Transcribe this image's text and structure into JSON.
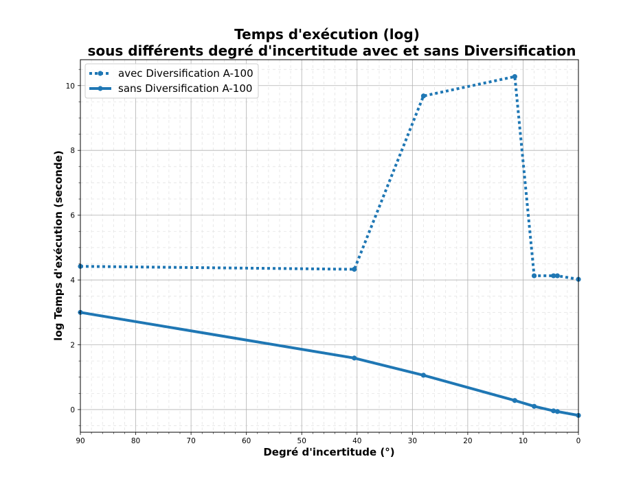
{
  "chart_data": {
    "type": "line",
    "title_line1": "Temps d'exécution (log)",
    "title_line2": "sous différents degré d'incertitude avec et sans Diversification",
    "xlabel": "Degré d'incertitude (°)",
    "ylabel": "log Temps d'exécution (seconde)",
    "xlim": [
      90,
      0
    ],
    "x_inverted": true,
    "ylim": [
      -0.7,
      10.8
    ],
    "grid": true,
    "minor_grid": true,
    "legend_placement": "top-left",
    "x_ticks": [
      90,
      80,
      70,
      60,
      50,
      40,
      30,
      20,
      10,
      0
    ],
    "y_ticks": [
      0,
      2,
      4,
      6,
      8,
      10
    ],
    "series": [
      {
        "name": "avec Diversification A-100",
        "style": "dotted",
        "color": "#1f77b4",
        "points": [
          [
            90,
            4.42
          ],
          [
            40.5,
            4.33
          ],
          [
            28,
            9.68
          ],
          [
            11.5,
            10.28
          ],
          [
            8,
            4.13
          ],
          [
            4.5,
            4.13
          ],
          [
            3.8,
            4.13
          ],
          [
            0,
            4.02
          ]
        ]
      },
      {
        "name": "sans Diversification A-100",
        "style": "solid",
        "color": "#1f77b4",
        "points": [
          [
            90,
            3.0
          ],
          [
            40.5,
            1.59
          ],
          [
            28,
            1.06
          ],
          [
            11.5,
            0.28
          ],
          [
            8,
            0.1
          ],
          [
            4.5,
            -0.04
          ],
          [
            3.8,
            -0.06
          ],
          [
            0,
            -0.18
          ]
        ]
      }
    ]
  }
}
